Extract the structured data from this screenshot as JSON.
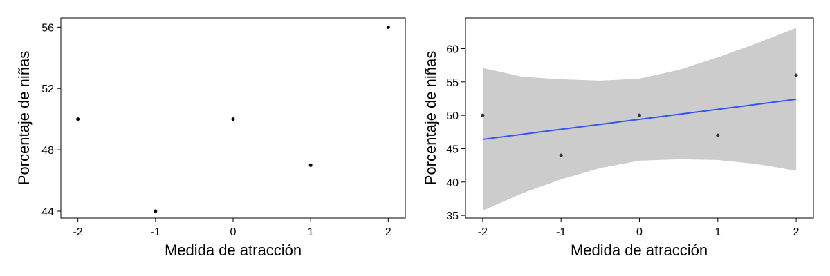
{
  "chart_data": [
    {
      "type": "scatter",
      "xlabel": "Medida de atracción",
      "ylabel": "Porcentaje de niñas",
      "xlim": [
        -2.22,
        2.22
      ],
      "ylim": [
        43.55,
        56.6
      ],
      "xticks": [
        -2,
        -1,
        0,
        1,
        2
      ],
      "xtick_labels": [
        "-2",
        "-1",
        "0",
        "1",
        "2"
      ],
      "yticks": [
        44,
        48,
        52,
        56
      ],
      "ytick_labels": [
        "44",
        "48",
        "52",
        "56"
      ],
      "grid": false,
      "points": [
        {
          "x": -2,
          "y": 50
        },
        {
          "x": -1,
          "y": 44
        },
        {
          "x": 0,
          "y": 50
        },
        {
          "x": 1,
          "y": 47
        },
        {
          "x": 2,
          "y": 56
        }
      ]
    },
    {
      "type": "scatter",
      "xlabel": "Medida de atracción",
      "ylabel": "Porcentaje de niñas",
      "xlim": [
        -2.22,
        2.22
      ],
      "ylim": [
        34.6,
        64.6
      ],
      "xticks": [
        -2,
        -1,
        0,
        1,
        2
      ],
      "xtick_labels": [
        "-2",
        "-1",
        "0",
        "1",
        "2"
      ],
      "yticks": [
        35,
        40,
        45,
        50,
        55,
        60
      ],
      "ytick_labels": [
        "35",
        "40",
        "45",
        "50",
        "55",
        "60"
      ],
      "grid": false,
      "points": [
        {
          "x": -2,
          "y": 50
        },
        {
          "x": -1,
          "y": 44
        },
        {
          "x": 0,
          "y": 50
        },
        {
          "x": 1,
          "y": 47
        },
        {
          "x": 2,
          "y": 56
        }
      ],
      "fit_line": {
        "x": [
          -2,
          2
        ],
        "y": [
          46.4,
          52.4
        ],
        "color": "#3355ee"
      },
      "confidence_band": {
        "x": [
          -2,
          -1.5,
          -1,
          -0.5,
          0,
          0.5,
          1,
          1.5,
          2
        ],
        "lower": [
          35.7,
          38.3,
          40.4,
          42.1,
          43.2,
          43.4,
          43.3,
          42.7,
          41.7
        ],
        "upper": [
          57.1,
          55.8,
          55.4,
          55.2,
          55.5,
          56.8,
          58.7,
          60.8,
          63.1
        ],
        "color": "#cccccc"
      }
    }
  ]
}
